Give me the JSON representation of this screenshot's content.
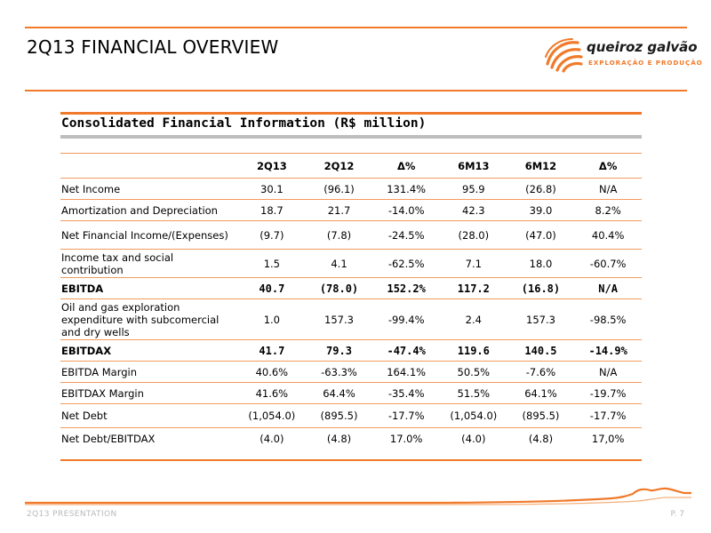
{
  "header": {
    "title": "2Q13 FINANCIAL OVERVIEW",
    "logo_name": "queiroz galvão",
    "logo_tagline": "EXPLORAÇÃO E PRODUÇÃO"
  },
  "section": {
    "title": "Consolidated Financial Information (R$ million)"
  },
  "table": {
    "columns": [
      "",
      "2Q13",
      "2Q12",
      "Δ%",
      "6M13",
      "6M12",
      "Δ%"
    ],
    "rows": [
      {
        "label": "Net Income",
        "values": [
          "30.1",
          "(96.1)",
          "131.4%",
          "95.9",
          "(26.8)",
          "N/A"
        ]
      },
      {
        "label": "Amortization and Depreciation",
        "values": [
          "18.7",
          "21.7",
          "-14.0%",
          "42.3",
          "39.0",
          "8.2%"
        ]
      },
      {
        "label": "Net Financial Income/(Expenses)",
        "values": [
          "(9.7)",
          "(7.8)",
          "-24.5%",
          "(28.0)",
          "(47.0)",
          "40.4%"
        ]
      },
      {
        "label": "Income tax and social contribution",
        "values": [
          "1.5",
          "4.1",
          "-62.5%",
          "7.1",
          "18.0",
          "-60.7%"
        ]
      },
      {
        "label": "EBITDA",
        "values": [
          "40.7",
          "(78.0)",
          "152.2%",
          "117.2",
          "(16.8)",
          "N/A"
        ]
      },
      {
        "label": "Oil and gas exploration expenditure with subcomercial and dry wells",
        "values": [
          "1.0",
          "157.3",
          "-99.4%",
          "2.4",
          "157.3",
          "-98.5%"
        ]
      },
      {
        "label": "EBITDAX",
        "values": [
          "41.7",
          "79.3",
          "-47.4%",
          "119.6",
          "140.5",
          "-14.9%"
        ]
      },
      {
        "label": "EBITDA Margin",
        "values": [
          "40.6%",
          "-63.3%",
          "164.1%",
          "50.5%",
          "-7.6%",
          "N/A"
        ]
      },
      {
        "label": "EBITDAX Margin",
        "values": [
          "41.6%",
          "64.4%",
          "-35.4%",
          "51.5%",
          "64.1%",
          "-19.7%"
        ]
      },
      {
        "label": "Net Debt",
        "values": [
          "(1,054.0)",
          "(895.5)",
          "-17.7%",
          "(1,054.0)",
          "(895.5)",
          "-17.7%"
        ]
      },
      {
        "label": "Net Debt/EBITDAX",
        "values": [
          "(4.0)",
          "(4.8)",
          "17.0%",
          "(4.0)",
          "(4.8)",
          "17,0%"
        ]
      }
    ]
  },
  "footer": {
    "left": "2Q13 PRESENTATION",
    "right": "P. 7"
  },
  "colors": {
    "accent": "#f07a2a",
    "divider_grey": "#bdbdbd",
    "footer_text": "#b9b9b9"
  }
}
